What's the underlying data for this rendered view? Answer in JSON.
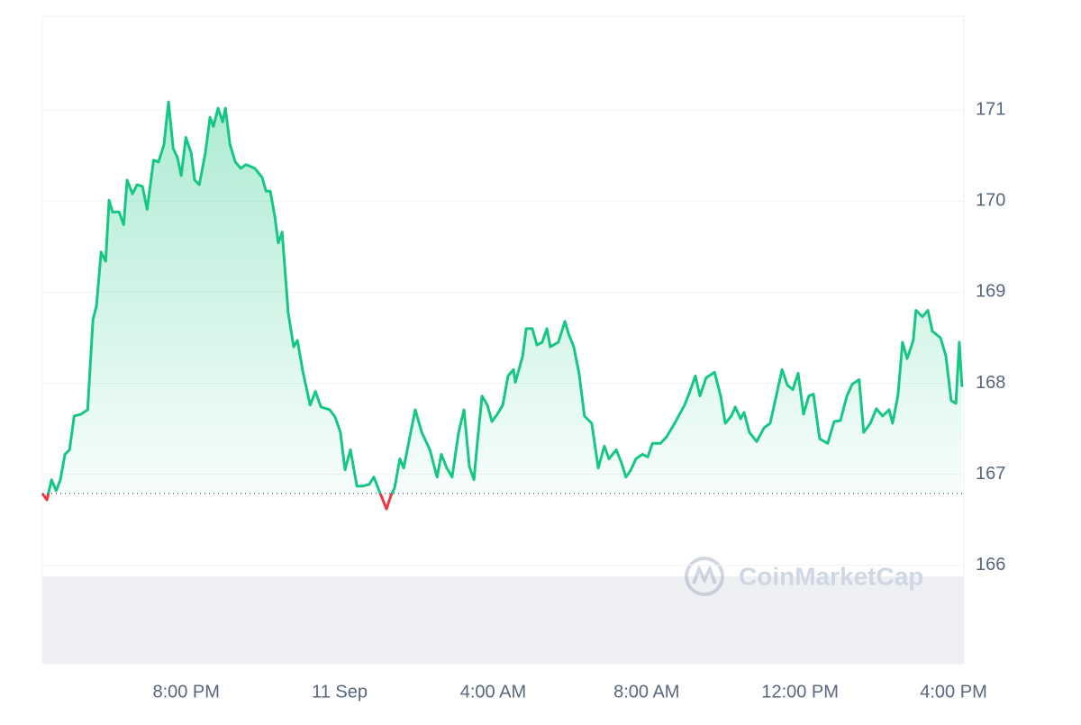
{
  "chart_data": {
    "type": "line",
    "watermark": "CoinMarketCap",
    "x": [
      -7.75,
      -7.63,
      -7.51,
      -7.39,
      -7.28,
      -7.16,
      -7.04,
      -6.92,
      -6.74,
      -6.57,
      -6.43,
      -6.34,
      -6.22,
      -6.1,
      -6.01,
      -5.92,
      -5.75,
      -5.63,
      -5.54,
      -5.4,
      -5.28,
      -5.14,
      -5.02,
      -4.85,
      -4.72,
      -4.58,
      -4.46,
      -4.34,
      -4.23,
      -4.13,
      -4.01,
      -3.87,
      -3.78,
      -3.66,
      -3.5,
      -3.38,
      -3.29,
      -3.17,
      -3.05,
      -2.98,
      -2.86,
      -2.72,
      -2.58,
      -2.44,
      -2.21,
      -2.02,
      -1.92,
      -1.81,
      -1.69,
      -1.6,
      -1.5,
      -1.34,
      -1.2,
      -1.1,
      -0.96,
      -0.77,
      -0.63,
      -0.49,
      -0.26,
      -0.12,
      0.02,
      0.14,
      0.28,
      0.45,
      0.59,
      0.77,
      0.89,
      1.03,
      1.22,
      1.34,
      1.43,
      1.57,
      1.67,
      1.85,
      1.97,
      2.14,
      2.35,
      2.54,
      2.65,
      2.79,
      2.93,
      3.1,
      3.24,
      3.38,
      3.5,
      3.59,
      3.71,
      3.85,
      3.97,
      4.11,
      4.25,
      4.39,
      4.53,
      4.58,
      4.77,
      4.86,
      5.02,
      5.14,
      5.28,
      5.4,
      5.49,
      5.7,
      5.87,
      5.96,
      6.1,
      6.24,
      6.38,
      6.57,
      6.74,
      6.9,
      7.02,
      7.21,
      7.35,
      7.46,
      7.58,
      7.72,
      7.89,
      8.03,
      8.15,
      8.36,
      8.52,
      8.73,
      8.99,
      9.11,
      9.27,
      9.39,
      9.55,
      9.77,
      9.93,
      10.05,
      10.21,
      10.31,
      10.45,
      10.54,
      10.68,
      10.87,
      11.06,
      11.22,
      11.38,
      11.53,
      11.67,
      11.81,
      11.95,
      12.09,
      12.23,
      12.35,
      12.51,
      12.72,
      12.89,
      13.05,
      13.22,
      13.36,
      13.54,
      13.66,
      13.83,
      13.99,
      14.15,
      14.32,
      14.41,
      14.55,
      14.67,
      14.79,
      14.95,
      15.02,
      15.19,
      15.33,
      15.45,
      15.66,
      15.8,
      15.94,
      16.06,
      16.15,
      16.22
    ],
    "series": [
      {
        "color": "#16c784",
        "values": [
          166.79,
          166.72,
          166.94,
          166.82,
          166.94,
          167.22,
          167.27,
          167.64,
          167.66,
          167.71,
          168.7,
          168.85,
          169.44,
          169.34,
          170.01,
          169.88,
          169.88,
          169.74,
          170.23,
          170.08,
          170.18,
          170.16,
          169.91,
          170.45,
          170.43,
          170.62,
          171.09,
          170.58,
          170.48,
          170.28,
          170.7,
          170.53,
          170.23,
          170.18,
          170.53,
          170.92,
          170.82,
          171.02,
          170.87,
          171.02,
          170.62,
          170.43,
          170.36,
          170.4,
          170.36,
          170.26,
          170.11,
          170.11,
          169.83,
          169.54,
          169.66,
          168.77,
          168.4,
          168.47,
          168.13,
          167.76,
          167.91,
          167.74,
          167.71,
          167.63,
          167.46,
          167.05,
          167.27,
          166.87,
          166.87,
          166.89,
          166.97,
          166.82,
          166.62,
          166.77,
          166.85,
          167.17,
          167.07,
          167.46,
          167.71,
          167.46,
          167.27,
          166.97,
          167.22,
          167.07,
          166.97,
          167.46,
          167.71,
          167.09,
          166.94,
          167.36,
          167.86,
          167.76,
          167.58,
          167.66,
          167.76,
          168.08,
          168.15,
          168.01,
          168.3,
          168.6,
          168.6,
          168.42,
          168.45,
          168.6,
          168.4,
          168.45,
          168.68,
          168.55,
          168.4,
          168.11,
          167.64,
          167.56,
          167.07,
          167.31,
          167.17,
          167.27,
          167.12,
          166.97,
          167.04,
          167.17,
          167.22,
          167.19,
          167.34,
          167.34,
          167.41,
          167.56,
          167.76,
          167.89,
          168.08,
          167.86,
          168.06,
          168.12,
          167.86,
          167.56,
          167.64,
          167.74,
          167.61,
          167.68,
          167.46,
          167.36,
          167.51,
          167.56,
          167.86,
          168.15,
          167.98,
          167.93,
          168.11,
          167.66,
          167.86,
          167.88,
          167.39,
          167.34,
          167.58,
          167.59,
          167.86,
          167.99,
          168.04,
          167.46,
          167.56,
          167.72,
          167.64,
          167.71,
          167.56,
          167.86,
          168.45,
          168.27,
          168.47,
          168.8,
          168.73,
          168.8,
          168.57,
          168.5,
          168.3,
          167.81,
          167.78,
          168.45,
          167.96
        ]
      }
    ],
    "reference_line": 166.79,
    "down_color": "#ea3943",
    "xlim": [
      -7.75,
      16.27
    ],
    "ylim": [
      164.92,
      172.03
    ],
    "xticks": [
      {
        "value": -4,
        "label": "8:00 PM"
      },
      {
        "value": 0,
        "label": "11 Sep"
      },
      {
        "value": 4,
        "label": "4:00 AM"
      },
      {
        "value": 8,
        "label": "8:00 AM"
      },
      {
        "value": 12,
        "label": "12:00 PM"
      },
      {
        "value": 16,
        "label": "4:00 PM"
      }
    ],
    "yticks": [
      166,
      167,
      168,
      169,
      170,
      171
    ],
    "grid": true
  }
}
